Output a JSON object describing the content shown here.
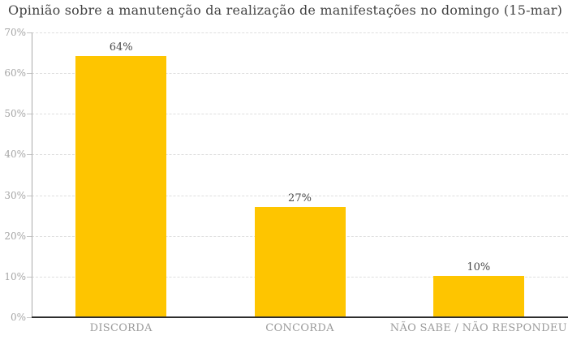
{
  "chart_data": {
    "type": "bar",
    "title": "Opinião sobre a manutenção da realização de manifestações no domingo (15-mar)",
    "categories": [
      "DISCORDA",
      "CONCORDA",
      "NÃO SABE / NÃO RESPONDEU"
    ],
    "values": [
      64,
      27,
      10
    ],
    "value_labels": [
      "64%",
      "27%",
      "10%"
    ],
    "xlabel": "",
    "ylabel": "",
    "ylim": [
      0,
      70
    ],
    "yticks": [
      0,
      10,
      20,
      30,
      40,
      50,
      60,
      70
    ],
    "ytick_labels": [
      "0%",
      "10%",
      "20%",
      "30%",
      "40%",
      "50%",
      "60%",
      "70%"
    ],
    "grid": "horizontal-dashed",
    "legend": "none",
    "bar_color": "#fec500",
    "axis_line_color": "#ababab",
    "baseline_color": "#2e2e2e",
    "gridline_color": "#dedede",
    "title_color": "#444444",
    "tick_label_color": "#a6a6a6",
    "value_label_color": "#4a4a4a",
    "category_label_color": "#9b9b9b"
  }
}
